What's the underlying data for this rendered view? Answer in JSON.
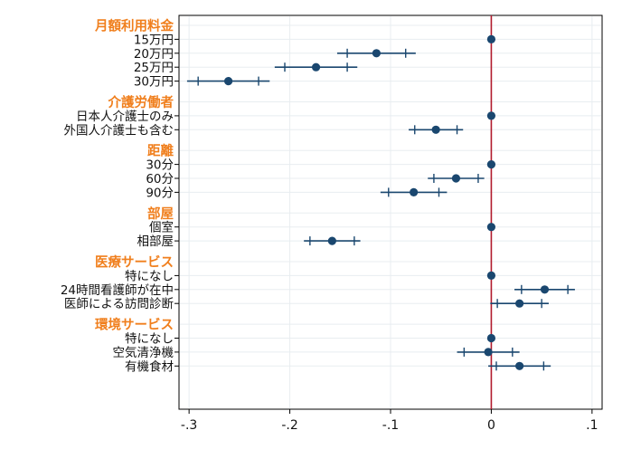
{
  "chart_data": {
    "type": "scatter",
    "subtype": "coefficient-plot",
    "title": "",
    "xlabel": "",
    "ylabel": "",
    "xlim": [
      -0.31,
      0.11
    ],
    "x_ticks": [
      -0.3,
      -0.2,
      -0.1,
      0,
      0.1
    ],
    "x_tick_labels": [
      "-.3",
      "-.2",
      "-.1",
      "0",
      ".1"
    ],
    "reference_line_x": 0,
    "grid": true,
    "legend": "none",
    "colors": {
      "group_header": "#f07f1d",
      "marker": "#1a476f",
      "reference_line": "#b11b2d",
      "grid": "#e8edf0",
      "label_text": "#111111"
    },
    "rows": [
      {
        "kind": "header",
        "label": "月額利用料金"
      },
      {
        "kind": "item",
        "label": "15万円",
        "estimate": 0,
        "ci95": [
          0,
          0
        ],
        "ci90": [
          0,
          0
        ]
      },
      {
        "kind": "item",
        "label": "20万円",
        "estimate": -0.114,
        "ci95": [
          -0.153,
          -0.075
        ],
        "ci90": [
          -0.143,
          -0.085
        ]
      },
      {
        "kind": "item",
        "label": "25万円",
        "estimate": -0.174,
        "ci95": [
          -0.215,
          -0.133
        ],
        "ci90": [
          -0.205,
          -0.143
        ]
      },
      {
        "kind": "item",
        "label": "30万円",
        "estimate": -0.261,
        "ci95": [
          -0.302,
          -0.22
        ],
        "ci90": [
          -0.291,
          -0.231
        ]
      },
      {
        "kind": "gap"
      },
      {
        "kind": "header",
        "label": "介護労働者"
      },
      {
        "kind": "item",
        "label": "日本人介護士のみ",
        "estimate": 0,
        "ci95": [
          0,
          0
        ],
        "ci90": [
          0,
          0
        ]
      },
      {
        "kind": "item",
        "label": "外国人介護士も含む",
        "estimate": -0.055,
        "ci95": [
          -0.082,
          -0.028
        ],
        "ci90": [
          -0.076,
          -0.034
        ]
      },
      {
        "kind": "gap"
      },
      {
        "kind": "header",
        "label": "距離"
      },
      {
        "kind": "item",
        "label": "30分",
        "estimate": 0,
        "ci95": [
          0,
          0
        ],
        "ci90": [
          0,
          0
        ]
      },
      {
        "kind": "item",
        "label": "60分",
        "estimate": -0.035,
        "ci95": [
          -0.063,
          -0.007
        ],
        "ci90": [
          -0.057,
          -0.013
        ]
      },
      {
        "kind": "item",
        "label": "90分",
        "estimate": -0.077,
        "ci95": [
          -0.11,
          -0.044
        ],
        "ci90": [
          -0.102,
          -0.052
        ]
      },
      {
        "kind": "gap"
      },
      {
        "kind": "header",
        "label": "部屋"
      },
      {
        "kind": "item",
        "label": "個室",
        "estimate": 0,
        "ci95": [
          0,
          0
        ],
        "ci90": [
          0,
          0
        ]
      },
      {
        "kind": "item",
        "label": "相部屋",
        "estimate": -0.158,
        "ci95": [
          -0.186,
          -0.13
        ],
        "ci90": [
          -0.18,
          -0.136
        ]
      },
      {
        "kind": "gap"
      },
      {
        "kind": "header",
        "label": "医療サービス"
      },
      {
        "kind": "item",
        "label": "特になし",
        "estimate": 0,
        "ci95": [
          0,
          0
        ],
        "ci90": [
          0,
          0
        ]
      },
      {
        "kind": "item",
        "label": "24時間看護師が在中",
        "estimate": 0.053,
        "ci95": [
          0.023,
          0.083
        ],
        "ci90": [
          0.03,
          0.076
        ]
      },
      {
        "kind": "item",
        "label": "医師による訪問診断",
        "estimate": 0.028,
        "ci95": [
          -0.001,
          0.057
        ],
        "ci90": [
          0.006,
          0.05
        ]
      },
      {
        "kind": "gap"
      },
      {
        "kind": "header",
        "label": "環境サービス"
      },
      {
        "kind": "item",
        "label": "特になし",
        "estimate": 0,
        "ci95": [
          0,
          0
        ],
        "ci90": [
          0,
          0
        ]
      },
      {
        "kind": "item",
        "label": "空気清浄機",
        "estimate": -0.003,
        "ci95": [
          -0.034,
          0.028
        ],
        "ci90": [
          -0.027,
          0.021
        ]
      },
      {
        "kind": "item",
        "label": "有機食材",
        "estimate": 0.028,
        "ci95": [
          -0.003,
          0.059
        ],
        "ci90": [
          0.005,
          0.052
        ]
      }
    ]
  }
}
